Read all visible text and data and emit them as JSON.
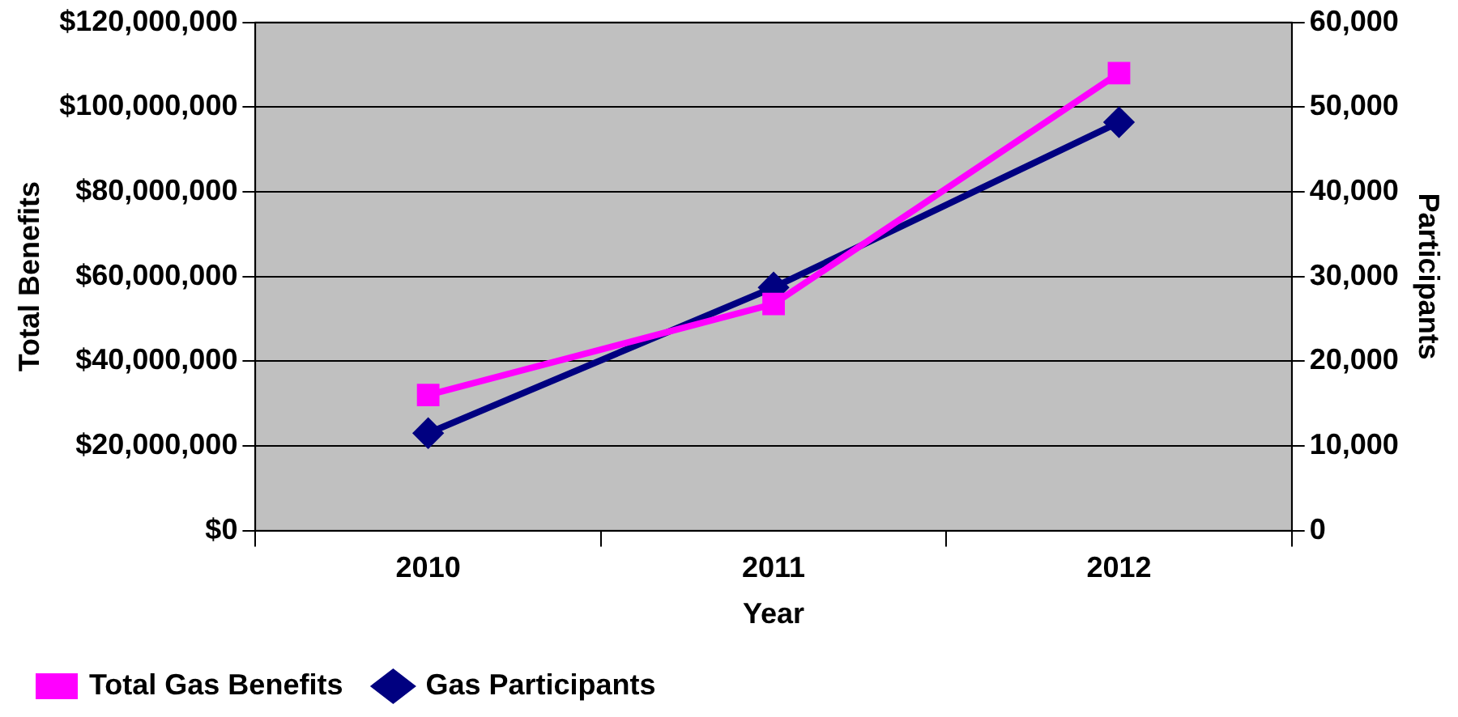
{
  "chart_data": {
    "type": "line",
    "xlabel": "Year",
    "ylabel": "Total Benefits",
    "y2label": "Participants",
    "categories": [
      "2010",
      "2011",
      "2012"
    ],
    "series": [
      {
        "name": "Total Gas Benefits",
        "color": "#ff00ff",
        "marker": "square",
        "values": [
          32000000,
          53500000,
          108000000
        ]
      },
      {
        "name": "Gas Participants",
        "color": "#000080",
        "marker": "diamond",
        "axis": "y2",
        "values": [
          11500,
          28700,
          48200
        ]
      }
    ],
    "ylim": [
      0,
      120000000
    ],
    "yticks": [
      {
        "value": 0,
        "label": "$0"
      },
      {
        "value": 20000000,
        "label": "$20,000,000"
      },
      {
        "value": 40000000,
        "label": "$40,000,000"
      },
      {
        "value": 60000000,
        "label": "$60,000,000"
      },
      {
        "value": 80000000,
        "label": "$80,000,000"
      },
      {
        "value": 100000000,
        "label": "$100,000,000"
      },
      {
        "value": 120000000,
        "label": "$120,000,000"
      }
    ],
    "y2lim": [
      0,
      60000
    ],
    "y2ticks": [
      0,
      {
        "value": 10000,
        "label": "10,000"
      },
      {
        "value": 20000,
        "label": "20,000"
      },
      {
        "value": 30000,
        "label": "30,000"
      },
      {
        "value": 40000,
        "label": "40,000"
      },
      {
        "value": 50000,
        "label": "50,000"
      },
      {
        "value": 60000,
        "label": "60,000"
      }
    ],
    "grid": "y",
    "legend": "bottom left",
    "line_style": "solid"
  }
}
